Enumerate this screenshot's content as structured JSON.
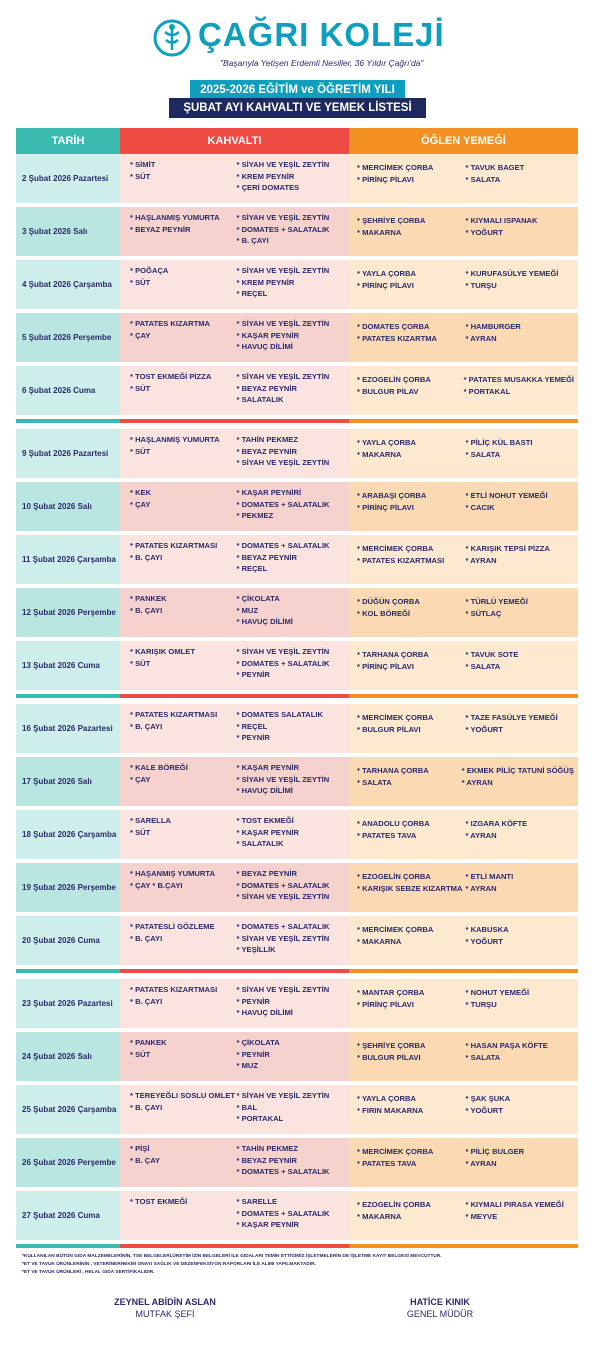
{
  "header": {
    "school_name": "ÇAĞRI KOLEJİ",
    "slogan": "\"Başarıyla Yetişen Erdemli Nesiller, 36 Yıldır Çağrı'da\"",
    "year_title": "2025-2026 EĞİTİM ve ÖĞRETİM YILI",
    "list_title": "ŞUBAT AYI KAHVALTI VE YEMEK LİSTESİ"
  },
  "columns": {
    "date": "TARİH",
    "breakfast": "KAHVALTI",
    "lunch": "ÖĞLEN YEMEĞİ"
  },
  "colors": {
    "teal": "#3bbbb0",
    "red": "#ee4b43",
    "orange": "#f39223",
    "navy": "#1e2a5e",
    "brand": "#0e9fbe"
  },
  "weeks": [
    {
      "days": [
        {
          "date": "2 Şubat 2026 Pazartesi",
          "k1": [
            "SİMİT",
            "SÜT"
          ],
          "k2": [
            "SİYAH VE YEŞİL ZEYTİN",
            "KREM PEYNİR",
            "ÇERİ DOMATES"
          ],
          "o1": [
            "MERCİMEK ÇORBA",
            "PİRİNÇ PİLAVI"
          ],
          "o2": [
            "TAVUK BAGET",
            "SALATA"
          ]
        },
        {
          "date": "3 Şubat 2026 Salı",
          "k1": [
            "HAŞLANMIŞ YUMURTA",
            "BEYAZ PEYNİR"
          ],
          "k2": [
            "SİYAH VE YEŞİL ZEYTİN",
            "DOMATES + SALATALIK",
            "B. ÇAYI"
          ],
          "o1": [
            "ŞEHRİYE ÇORBA",
            "MAKARNA"
          ],
          "o2": [
            "KIYMALI ISPANAK",
            "YOĞURT"
          ]
        },
        {
          "date": "4 Şubat 2026 Çarşamba",
          "k1": [
            "POĞAÇA",
            "SÜT"
          ],
          "k2": [
            "SİYAH VE YEŞİL ZEYTİN",
            "KREM PEYNİR",
            "REÇEL"
          ],
          "o1": [
            "YAYLA ÇORBA",
            "PİRİNÇ PİLAVI"
          ],
          "o2": [
            "KURUFASÜLYE YEMEĞİ",
            "TURŞU"
          ]
        },
        {
          "date": "5 Şubat 2026 Perşembe",
          "k1": [
            "PATATES KIZARTMA",
            "ÇAY"
          ],
          "k2": [
            "SİYAH VE YEŞİL ZEYTİN",
            "KAŞAR PEYNİR",
            "HAVUÇ DİLİMİ"
          ],
          "o1": [
            "DOMATES ÇORBA",
            "PATATES KIZARTMA"
          ],
          "o2": [
            "HAMBURGER",
            "AYRAN"
          ]
        },
        {
          "date": "6 Şubat 2026 Cuma",
          "k1": [
            "TOST EKMEĞİ PİZZA",
            "SÜT"
          ],
          "k2": [
            "SİYAH VE YEŞİL ZEYTİN",
            "BEYAZ PEYNİR",
            "SALATALIK"
          ],
          "o1": [
            "EZOGELİN ÇORBA",
            "BULGUR PİLAV"
          ],
          "o2": [
            "PATATES MUSAKKA YEMEĞİ",
            "PORTAKAL"
          ]
        }
      ]
    },
    {
      "days": [
        {
          "date": "9 Şubat 2026 Pazartesi",
          "k1": [
            "HAŞLANMIŞ YUMURTA",
            "SÜT"
          ],
          "k2": [
            "TAHİN PEKMEZ",
            "BEYAZ PEYNİR",
            "SİYAH VE YEŞİL ZEYTİN"
          ],
          "o1": [
            "YAYLA ÇORBA",
            "MAKARNA"
          ],
          "o2": [
            "PİLİÇ KÜL BASTI",
            "SALATA"
          ]
        },
        {
          "date": "10 Şubat 2026 Salı",
          "k1": [
            "KEK",
            "ÇAY"
          ],
          "k2": [
            "KAŞAR PEYNİRİ",
            "DOMATES + SALATALIK",
            "PEKMEZ"
          ],
          "o1": [
            "ARABAŞI ÇORBA",
            "PİRİNÇ PİLAVI"
          ],
          "o2": [
            "ETLİ NOHUT YEMEĞİ",
            "CACIK"
          ]
        },
        {
          "date": "11 Şubat 2026 Çarşamba",
          "k1": [
            "PATATES KIZARTMASI",
            "B. ÇAYI"
          ],
          "k2": [
            "DOMATES + SALATALIK",
            "BEYAZ PEYNİR",
            "REÇEL"
          ],
          "o1": [
            "MERCİMEK ÇORBA",
            "PATATES KIZARTMASI"
          ],
          "o2": [
            "KARIŞIK TEPSİ PİZZA",
            "AYRAN"
          ]
        },
        {
          "date": "12 Şubat 2026 Perşembe",
          "k1": [
            "PANKEK",
            "B. ÇAYI"
          ],
          "k2": [
            "ÇİKOLATA",
            "MUZ",
            "HAVUÇ DİLİMİ"
          ],
          "o1": [
            "DÜĞÜN ÇORBA",
            "KOL BÖREĞİ"
          ],
          "o2": [
            "TÜRLÜ YEMEĞİ",
            "SÜTLAÇ"
          ]
        },
        {
          "date": "13 Şubat 2026 Cuma",
          "k1": [
            "KARIŞIK OMLET",
            "SÜT"
          ],
          "k2": [
            "SİYAH VE YEŞİL ZEYTİN",
            "DOMATES + SALATALIK",
            "PEYNİR"
          ],
          "o1": [
            "TARHANA ÇORBA",
            "PİRİNÇ PİLAVI"
          ],
          "o2": [
            "TAVUK SOTE",
            "SALATA"
          ]
        }
      ]
    },
    {
      "days": [
        {
          "date": "16 Şubat 2026 Pazartesi",
          "k1": [
            "PATATES KIZARTMASI",
            "B. ÇAYI"
          ],
          "k2": [
            "DOMATES SALATALIK",
            "REÇEL",
            "PEYNİR"
          ],
          "o1": [
            "MERCİMEK ÇORBA",
            "BULGUR PİLAVI"
          ],
          "o2": [
            "TAZE FASÜLYE YEMEĞİ",
            "YOĞURT"
          ]
        },
        {
          "date": "17 Şubat 2026 Salı",
          "k1": [
            "KALE BÖREĞİ",
            "ÇAY"
          ],
          "k2": [
            "KAŞAR PEYNİR",
            "SİYAH VE YEŞİL ZEYTİN",
            "HAVUÇ DİLİMİ"
          ],
          "o1": [
            "TARHANA ÇORBA",
            "SALATA"
          ],
          "o2": [
            "EKMEK PİLİÇ TATUNİ SÖĞÜŞ",
            "AYRAN"
          ]
        },
        {
          "date": "18 Şubat 2026 Çarşamba",
          "k1": [
            "SARELLA",
            "SÜT"
          ],
          "k2": [
            "TOST EKMEĞİ",
            "KAŞAR PEYNİR",
            "SALATALIK"
          ],
          "o1": [
            "ANADOLU ÇORBA",
            "PATATES TAVA"
          ],
          "o2": [
            "IZGARA KÖFTE",
            "AYRAN"
          ]
        },
        {
          "date": "19 Şubat 2026 Perşembe",
          "k1": [
            "HAŞANMIŞ YUMURTA",
            "ÇAY * B.ÇAYI"
          ],
          "k2": [
            "BEYAZ PEYNİR",
            "DOMATES + SALATALIK",
            "SİYAH VE YEŞİL ZEYTİN"
          ],
          "o1": [
            "EZOGELİN ÇORBA",
            "KARIŞIK SEBZE KIZARTMA"
          ],
          "o2": [
            "ETLİ MANTI",
            "AYRAN"
          ]
        },
        {
          "date": "20 Şubat 2026 Cuma",
          "k1": [
            "PATATESLİ GÖZLEME",
            "B. ÇAYI"
          ],
          "k2": [
            "DOMATES + SALATALIK",
            "SİYAH VE YEŞİL ZEYTİN",
            "YEŞİLLİK"
          ],
          "o1": [
            "MERCİMEK ÇORBA",
            "MAKARNA"
          ],
          "o2": [
            "KABUSKA",
            "YOĞURT"
          ]
        }
      ]
    },
    {
      "days": [
        {
          "date": "23 Şubat 2026 Pazartesi",
          "k1": [
            "PATATES KIZARTMASI",
            "B. ÇAYI"
          ],
          "k2": [
            "SİYAH VE YEŞİL ZEYTİN",
            "PEYNİR",
            "HAVUÇ DİLİMİ"
          ],
          "o1": [
            "MANTAR ÇORBA",
            "PİRİNÇ PİLAVI"
          ],
          "o2": [
            "NOHUT YEMEĞİ",
            "TURŞU"
          ]
        },
        {
          "date": "24 Şubat 2026 Salı",
          "k1": [
            "PANKEK",
            "SÜT"
          ],
          "k2": [
            "ÇİKOLATA",
            "PEYNİR",
            "MUZ"
          ],
          "o1": [
            "ŞEHRİYE ÇORBA",
            "BULGUR PİLAVI"
          ],
          "o2": [
            "HASAN PAŞA KÖFTE",
            "SALATA"
          ]
        },
        {
          "date": "25 Şubat 2026 Çarşamba",
          "k1": [
            "TEREYEĞLI SOSLU OMLET",
            "B. ÇAYI"
          ],
          "k2": [
            "SİYAH VE YEŞİL ZEYTİN",
            "BAL",
            "PORTAKAL"
          ],
          "o1": [
            "YAYLA ÇORBA",
            "FIRIN MAKARNA"
          ],
          "o2": [
            "ŞAK ŞUKA",
            "YOĞURT"
          ]
        },
        {
          "date": "26 Şubat 2026 Perşembe",
          "k1": [
            "PİŞİ",
            "B. ÇAY"
          ],
          "k2": [
            "TAHİN PEKMEZ",
            "BEYAZ PEYNİR",
            "DOMATES + SALATALIK"
          ],
          "o1": [
            "MERCİMEK ÇORBA",
            "PATATES TAVA"
          ],
          "o2": [
            "PİLİÇ BULGER",
            "AYRAN"
          ]
        },
        {
          "date": "27 Şubat 2026 Cuma",
          "k1": [
            "TOST EKMEĞİ"
          ],
          "k2": [
            "SARELLE",
            "DOMATES + SALATALIK",
            "KAŞAR PEYNİR"
          ],
          "o1": [
            "EZOGELİN ÇORBA",
            "MAKARNA"
          ],
          "o2": [
            "KIYMALI PIRASA YEMEĞİ",
            "MEYVE"
          ]
        }
      ]
    }
  ],
  "notes": [
    "*KULLANILAN BÜTÜN GIDA MALZEMELERİNİN, TSE BELGELERİ,ÜRETİM İZİN BELGELERİ İLE GIDALARI TEMİN ETTİĞİMİZ İŞLETMELERİN DE İŞLETME KAYIT BELGESİ MEVCUTTUR.",
    "*ET VE TAVUK ÜRÜNLERİNİN , VETERİNERHEKİM ONAYI SAĞLIK VE DEZENFEKSİYON RAPORLARI İLE ALIMI YAPILMAKTADIR.",
    "*ET VE TAVUK ÜRÜNLERİ , HELAL GIDA SERTİFİKALIDIR."
  ],
  "signatures": [
    {
      "name": "ZEYNEL ABİDİN ASLAN",
      "role": "MUTFAK ŞEFİ"
    },
    {
      "name": "HATİCE KINIK",
      "role": "GENEL MÜDÜR"
    }
  ]
}
